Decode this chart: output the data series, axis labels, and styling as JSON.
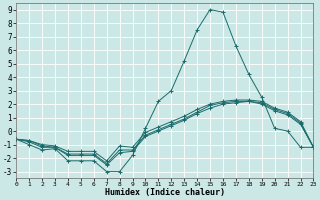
{
  "xlabel": "Humidex (Indice chaleur)",
  "bg_color": "#cce8e6",
  "grid_color": "#ffffff",
  "line_color": "#1a6b6b",
  "xlim": [
    0,
    23
  ],
  "ylim": [
    -3.5,
    9.5
  ],
  "xticks": [
    0,
    1,
    2,
    3,
    4,
    5,
    6,
    7,
    8,
    9,
    10,
    11,
    12,
    13,
    14,
    15,
    16,
    17,
    18,
    19,
    20,
    21,
    22,
    23
  ],
  "yticks": [
    -3,
    -2,
    -1,
    0,
    1,
    2,
    3,
    4,
    5,
    6,
    7,
    8,
    9
  ],
  "line1": [
    -0.6,
    -1.0,
    -1.4,
    -1.3,
    -2.2,
    -2.2,
    -2.2,
    -3.0,
    -3.0,
    -1.8,
    0.2,
    2.2,
    3.0,
    5.2,
    7.5,
    9.0,
    8.8,
    6.3,
    4.2,
    2.5,
    0.2,
    0.0,
    -1.2,
    -1.2
  ],
  "line2": [
    -0.6,
    -0.8,
    -1.2,
    -1.2,
    -1.8,
    -1.8,
    -1.8,
    -2.5,
    -1.6,
    -1.5,
    -0.4,
    0.0,
    0.4,
    0.8,
    1.3,
    1.7,
    2.0,
    2.1,
    2.2,
    2.0,
    1.5,
    1.2,
    0.5,
    -1.2
  ],
  "line3": [
    -0.6,
    -0.7,
    -1.1,
    -1.2,
    -1.7,
    -1.7,
    -1.7,
    -2.4,
    -1.4,
    -1.4,
    -0.3,
    0.1,
    0.5,
    0.9,
    1.4,
    1.9,
    2.1,
    2.2,
    2.2,
    2.1,
    1.6,
    1.3,
    0.6,
    -1.2
  ],
  "line4": [
    -0.6,
    -0.7,
    -1.0,
    -1.1,
    -1.5,
    -1.5,
    -1.5,
    -2.2,
    -1.1,
    -1.2,
    -0.1,
    0.3,
    0.7,
    1.1,
    1.6,
    2.0,
    2.2,
    2.3,
    2.3,
    2.2,
    1.7,
    1.4,
    0.7,
    -1.2
  ]
}
